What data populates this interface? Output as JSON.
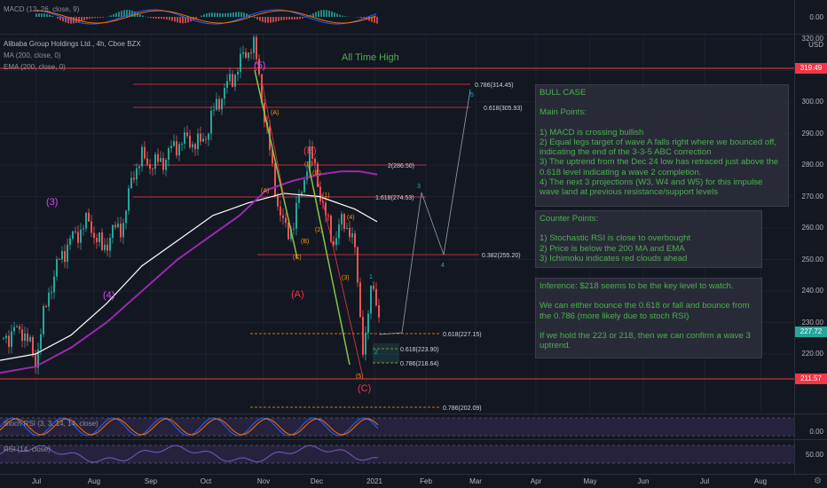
{
  "macd": {
    "legend": "MACD (12, 26, close, 9)",
    "axis": [
      "0.00"
    ]
  },
  "chart": {
    "title": "Alibaba Group Holdings Ltd., 4h, Cboe BZX",
    "ma_label": "MA (200, close, 0)",
    "ema_label": "EMA (200, close, 0)",
    "currency": "USD",
    "price_axis": [
      "320.00",
      "310.00",
      "300.00",
      "290.00",
      "280.00",
      "270.00",
      "260.00",
      "250.00",
      "240.00",
      "230.00",
      "220.00"
    ],
    "current_price": "227.72",
    "top_level": "319.49",
    "bottom_level": "211.57",
    "ath_label": "All Time High",
    "colors": {
      "up": "#26a69a",
      "down": "#ef5350",
      "ma": "#ffffff",
      "ema": "#9c27b0",
      "note_text": "#4caf50",
      "tag_price": "#26a69a",
      "tag_level": "#f23645"
    },
    "wave_labels": {
      "w5": "(5)",
      "w3": "(3)",
      "w4": "(4)",
      "wA": "(A)",
      "wB": "(B)",
      "wC": "(C)",
      "sub": [
        "(A)",
        "(B)",
        "(C)",
        "(A)",
        "(B)",
        "(C)",
        "(1)",
        "(2)",
        "(3)",
        "(4)",
        "(5)"
      ],
      "proj": [
        "1",
        "2",
        "3",
        "4",
        "5"
      ]
    },
    "fib": {
      "f786_top": "0.786(314.45)",
      "f618_top": "0.618(305.93)",
      "f2": "2(286.50)",
      "f1618": "1.618(274.53)",
      "f382": "0.382(255.20)",
      "f618b": "0.618(227.15)",
      "f618c": "0.618(223.90)",
      "f786c": "0.786(218.64)",
      "f786d": "0.786(202.09)"
    }
  },
  "notes": {
    "bull": "BULL CASE\n\nMain Points:\n\n1) MACD is crossing bullish\n2) Equal legs target of wave A falls right where we bounced off, indicating the end of the 3-3-5 ABC correction\n3) The uptrend from the Dec 24 low has retraced just above the 0.618 level indicating a wave 2 completion.\n4) The next 3 projections (W3, W4 and W5) for this impulse wave land at previous resistance/support levels",
    "counter": "Counter Points:\n\n1) Stochastic RSI is close to overbought\n2) Price is below the 200 MA and EMA\n3) Ichimoku indicates red clouds ahead",
    "inference": "Inference: $218 seems to be the key level to watch.\n\nWe can either bounce the 0.618 or fall and bounce from the 0.786 (more likely due to stoch RSI)\n\nIf we hold the 223 or 218, then we can confirm a wave 3 uptrend."
  },
  "stoch": {
    "legend": "Stoch RSI (3, 3, 14, 14, close)",
    "axis": [
      "0.00"
    ]
  },
  "rsi": {
    "legend": "RSI (14, close)",
    "axis": [
      "50.00"
    ]
  },
  "dates": [
    "Jul",
    "Aug",
    "Sep",
    "Oct",
    "Nov",
    "Dec",
    "2021",
    "Feb",
    "Mar",
    "Apr",
    "May",
    "Jun",
    "Jul",
    "Aug"
  ],
  "gear_icon": "gear-icon"
}
